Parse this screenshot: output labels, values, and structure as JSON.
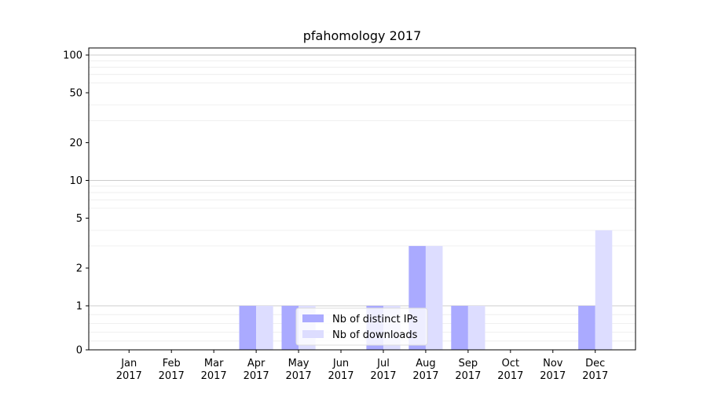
{
  "chart_data": {
    "type": "bar",
    "title": "pfahomology 2017",
    "xlabel": "",
    "ylabel": "",
    "y_scale": "symlog",
    "ylim": [
      0,
      120
    ],
    "y_ticks": [
      0,
      1,
      2,
      5,
      10,
      20,
      50,
      100
    ],
    "grid": "horizontal",
    "legend_position": "lower-center",
    "categories": [
      [
        "Jan",
        "2017"
      ],
      [
        "Feb",
        "2017"
      ],
      [
        "Mar",
        "2017"
      ],
      [
        "Apr",
        "2017"
      ],
      [
        "May",
        "2017"
      ],
      [
        "Jun",
        "2017"
      ],
      [
        "Jul",
        "2017"
      ],
      [
        "Aug",
        "2017"
      ],
      [
        "Sep",
        "2017"
      ],
      [
        "Oct",
        "2017"
      ],
      [
        "Nov",
        "2017"
      ],
      [
        "Dec",
        "2017"
      ]
    ],
    "series": [
      {
        "name": "Nb of distinct IPs",
        "color": "#aaaaff",
        "values": [
          0,
          0,
          0,
          1,
          1,
          0,
          1,
          3,
          1,
          0,
          0,
          1
        ]
      },
      {
        "name": "Nb of downloads",
        "color": "#ddddff",
        "values": [
          0,
          0,
          0,
          1,
          1,
          0,
          1,
          3,
          1,
          0,
          0,
          4
        ]
      }
    ]
  }
}
